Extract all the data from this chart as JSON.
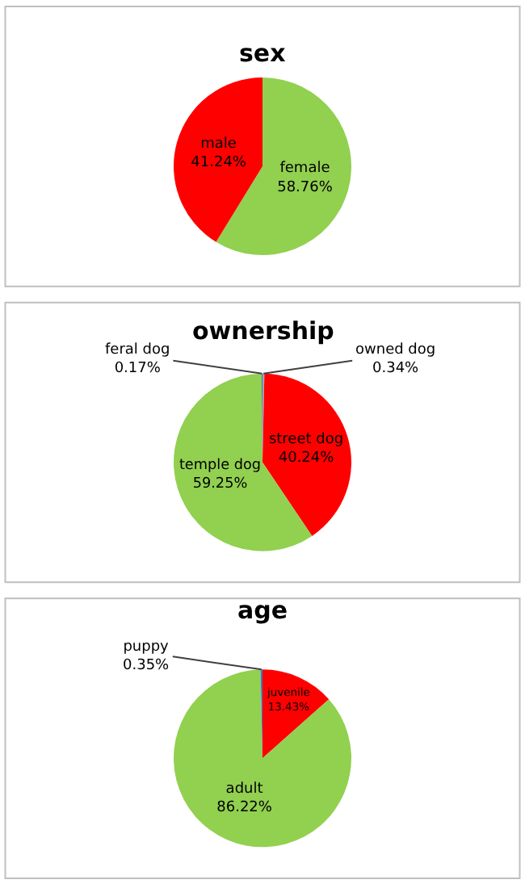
{
  "chart_data": [
    {
      "type": "pie",
      "title": "sex",
      "categories": [
        "female",
        "male"
      ],
      "values": [
        58.76,
        41.24
      ],
      "colors": [
        "#92d050",
        "#ff0000"
      ],
      "value_labels": [
        "58.76%",
        "41.24%"
      ]
    },
    {
      "type": "pie",
      "title": "ownership",
      "categories": [
        "owned dog",
        "street dog",
        "temple dog",
        "feral dog"
      ],
      "values": [
        0.34,
        40.24,
        59.25,
        0.17
      ],
      "colors": [
        "#a5a5a5",
        "#ff0000",
        "#92d050",
        "#4472c4"
      ],
      "value_labels": [
        "0.34%",
        "40.24%",
        "59.25%",
        "0.17%"
      ]
    },
    {
      "type": "pie",
      "title": "age",
      "categories": [
        "juvenile",
        "adult",
        "puppy"
      ],
      "values": [
        13.43,
        86.22,
        0.35
      ],
      "colors": [
        "#ff0000",
        "#92d050",
        "#4472c4"
      ],
      "value_labels": [
        "13.43%",
        "86.22%",
        "0.35%"
      ]
    }
  ]
}
